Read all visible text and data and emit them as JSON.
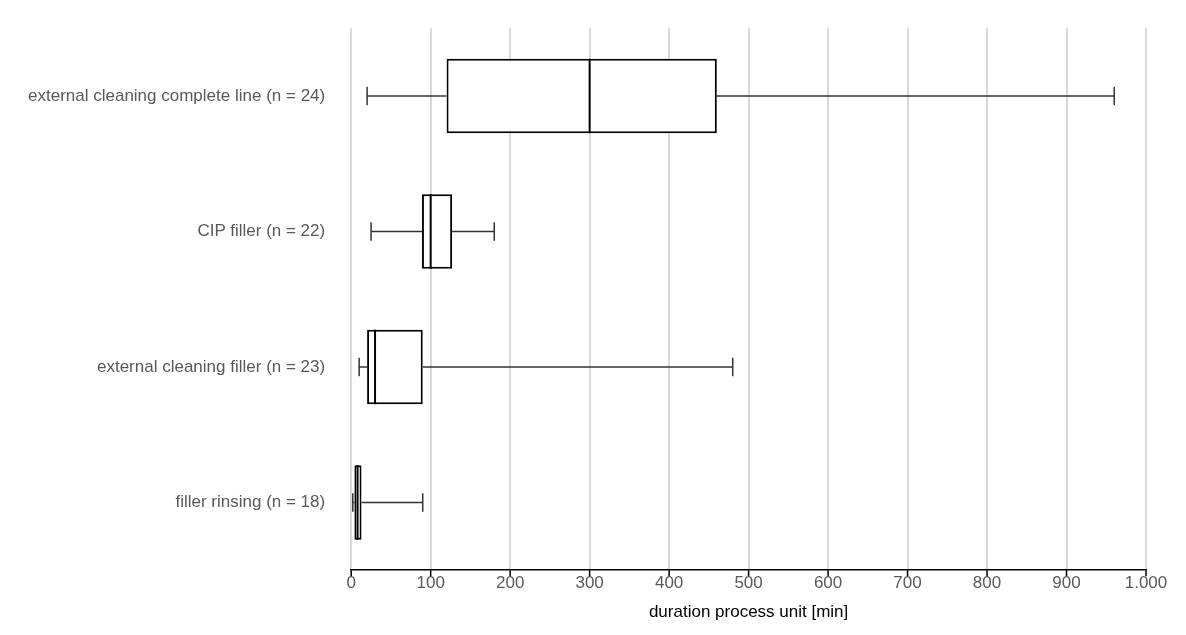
{
  "chart_data": {
    "type": "box",
    "orientation": "horizontal",
    "xlabel": "duration process unit [min]",
    "categories": [
      "external cleaning complete line (n = 24)",
      "CIP filler (n = 22)",
      "external cleaning filler (n = 23)",
      "filler rinsing (n = 18)"
    ],
    "boxes": [
      {
        "low": 20,
        "q1": 120,
        "median": 300,
        "q3": 460,
        "high": 960
      },
      {
        "low": 25,
        "q1": 89,
        "median": 100,
        "q3": 127,
        "high": 180
      },
      {
        "low": 10,
        "q1": 20,
        "median": 30,
        "q3": 90,
        "high": 480
      },
      {
        "low": 2,
        "q1": 4,
        "median": 8,
        "q3": 13,
        "high": 90
      }
    ],
    "xlim": [
      0,
      1000
    ],
    "xticks": [
      0,
      100,
      200,
      300,
      400,
      500,
      600,
      700,
      800,
      900,
      {
        "value": 1000,
        "label": "1.000"
      }
    ],
    "grid": "x"
  }
}
